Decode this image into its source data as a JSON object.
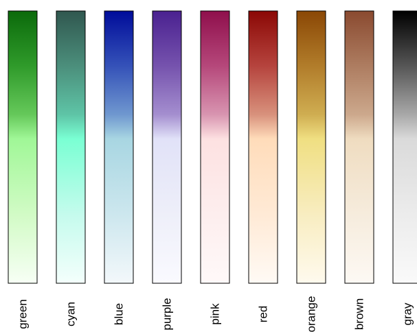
{
  "chart_data": {
    "type": "palette",
    "title": "",
    "xlabel": "",
    "ylabel": "",
    "grid": false,
    "legend": "none",
    "palettes": [
      {
        "name": "green",
        "stops": [
          "#0b6a0b",
          "#2f9a2a",
          "#65c85a",
          "#a0f797",
          "#d2fbc6",
          "#f7fff5"
        ]
      },
      {
        "name": "cyan",
        "stops": [
          "#30574f",
          "#4b8e7b",
          "#5ec4a6",
          "#7affd3",
          "#c5fbed",
          "#f4fffc"
        ]
      },
      {
        "name": "blue",
        "stops": [
          "#000c9a",
          "#3451b8",
          "#6f97cf",
          "#a8d6e2",
          "#cde7ee",
          "#f3f8fb"
        ]
      },
      {
        "name": "purple",
        "stops": [
          "#4a2190",
          "#7552ad",
          "#a48ecf",
          "#e1e2f8",
          "#eeeff9",
          "#fafaff"
        ]
      },
      {
        "name": "pink",
        "stops": [
          "#8f0f4c",
          "#b5477a",
          "#d894b0",
          "#fde1e1",
          "#fdeeee",
          "#fff9f9"
        ]
      },
      {
        "name": "red",
        "stops": [
          "#8b0805",
          "#b5433d",
          "#d8917c",
          "#ffdcba",
          "#ffead6",
          "#fffaf5"
        ]
      },
      {
        "name": "orange",
        "stops": [
          "#8a4705",
          "#b17c2a",
          "#cfad51",
          "#f0df82",
          "#f8edc1",
          "#fffaee"
        ]
      },
      {
        "name": "brown",
        "stops": [
          "#8a4a30",
          "#ad7c60",
          "#cca88c",
          "#efdcc0",
          "#f6ecdd",
          "#fdf9f4"
        ]
      },
      {
        "name": "gray",
        "stops": [
          "#000000",
          "#555555",
          "#a8a8a8",
          "#dadada",
          "#ececec",
          "#fafafa"
        ]
      }
    ]
  }
}
